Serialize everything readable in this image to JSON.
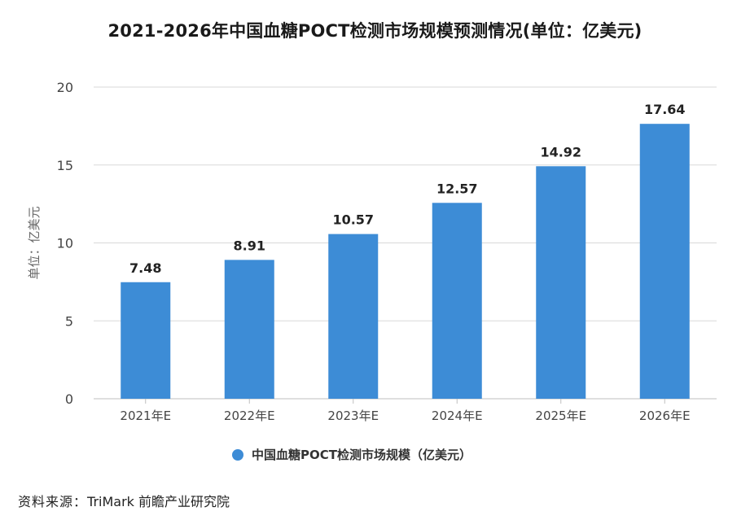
{
  "source": {
    "label": "资料来源：",
    "text": "TriMark 前瞻产业研究院"
  },
  "colors": {
    "bar": "#3d8cd6",
    "grid": "#d9d9d9",
    "axis": "#555555"
  },
  "chart_data": {
    "type": "bar",
    "title": "2021-2026年中国血糖POCT检测市场规模预测情况(单位：亿美元)",
    "ylabel": "单位：亿美元",
    "xlabel": "",
    "categories": [
      "2021年E",
      "2022年E",
      "2023年E",
      "2024年E",
      "2025年E",
      "2026年E"
    ],
    "series": [
      {
        "name": "中国血糖POCT检测市场规模（亿美元）",
        "values": [
          7.48,
          8.91,
          10.57,
          12.57,
          14.92,
          17.64
        ]
      }
    ],
    "ylim": [
      0,
      20
    ],
    "yticks": [
      "0",
      "5",
      "10",
      "15",
      "20"
    ],
    "grid": true,
    "legend": "bottom-center",
    "data_labels": [
      "7.48",
      "8.91",
      "10.57",
      "12.57",
      "14.92",
      "17.64"
    ]
  }
}
